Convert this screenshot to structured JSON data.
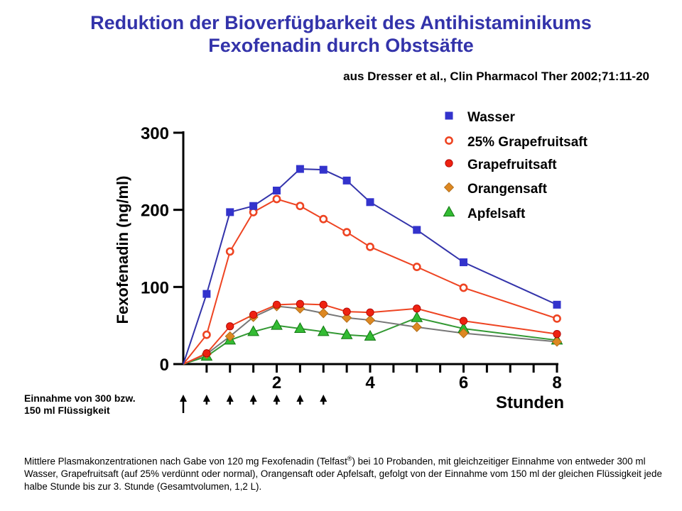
{
  "header": {
    "title_line1": "Reduktion der Bioverfügbarkeit des Antihistaminikums",
    "title_line2": "Fexofenadin durch Obstsäfte",
    "source": "aus Dresser et al., Clin Pharmacol Ther 2002;71:11-20"
  },
  "ingestion_note": {
    "line1": "Einnahme von 300 bzw.",
    "line2": "150 ml Flüssigkeit",
    "arrow_times": [
      0,
      0.5,
      1,
      1.5,
      2,
      2.5,
      3
    ]
  },
  "caption": {
    "part1": "Mittlere Plasmakonzentrationen nach Gabe von 120 mg Fexofenadin (Telfast",
    "superscript": "®",
    "part2": ") bei 10 Probanden, mit gleichzeitiger Einnahme von entweder 300 ml Wasser, Grapefruitsaft (auf 25% verdünnt oder normal), Orangensaft oder Apfelsaft, gefolgt von der Einnahme vom 150 ml der gleichen Flüssigkeit jede halbe Stunde bis zur 3. Stunde (Gesamtvolumen, 1,2 L)."
  },
  "chart_data": {
    "type": "line",
    "title": "Reduktion der Bioverfügbarkeit des Antihistaminikums Fexofenadin durch Obstsäfte",
    "xlabel": "Stunden",
    "ylabel": "Fexofenadin (ng/ml)",
    "xlim": [
      0,
      8
    ],
    "ylim": [
      0,
      300
    ],
    "x_ticks": [
      0,
      0.5,
      1,
      1.5,
      2,
      2.5,
      3,
      3.5,
      4,
      4.5,
      5,
      5.5,
      6,
      6.5,
      7,
      7.5,
      8
    ],
    "x_tick_labels": [
      {
        "x": 2,
        "label": "2"
      },
      {
        "x": 4,
        "label": "4"
      },
      {
        "x": 6,
        "label": "6"
      },
      {
        "x": 8,
        "label": "8"
      }
    ],
    "y_ticks": [
      0,
      100,
      200,
      300
    ],
    "y_tick_labels": [
      "0",
      "100",
      "200",
      "300"
    ],
    "grid": false,
    "legend_position": "top-right",
    "series": [
      {
        "name": "Wasser",
        "marker": "square",
        "color": "#3333cc",
        "line_color": "#3333aa",
        "x": [
          0,
          0.5,
          1,
          1.5,
          2,
          2.5,
          3,
          3.5,
          4,
          5,
          6,
          8
        ],
        "y": [
          0,
          91,
          197,
          205,
          225,
          253,
          252,
          238,
          210,
          174,
          132,
          77
        ]
      },
      {
        "name": "25% Grapefruitsaft",
        "marker": "open-circle",
        "color": "#ee4422",
        "line_color": "#ee4422",
        "x": [
          0,
          0.5,
          1,
          1.5,
          2,
          2.5,
          3,
          3.5,
          4,
          5,
          6,
          8
        ],
        "y": [
          0,
          38,
          146,
          197,
          214,
          205,
          188,
          171,
          152,
          126,
          99,
          59
        ]
      },
      {
        "name": "Grapefruitsaft",
        "marker": "filled-circle",
        "color": "#ee2211",
        "line_color": "#ee4422",
        "x": [
          0,
          0.5,
          1,
          1.5,
          2,
          2.5,
          3,
          3.5,
          4,
          5,
          6,
          8
        ],
        "y": [
          0,
          14,
          49,
          64,
          77,
          78,
          77,
          68,
          67,
          72,
          56,
          39
        ]
      },
      {
        "name": "Orangensaft",
        "marker": "diamond",
        "color": "#dd8822",
        "line_color": "#777777",
        "x": [
          0,
          0.5,
          1,
          1.5,
          2,
          2.5,
          3,
          3.5,
          4,
          5,
          6,
          8
        ],
        "y": [
          0,
          13,
          36,
          61,
          75,
          72,
          66,
          60,
          57,
          48,
          40,
          29
        ]
      },
      {
        "name": "Apfelsaft",
        "marker": "triangle",
        "color": "#33bb33",
        "line_color": "#339933",
        "x": [
          0,
          0.5,
          1,
          1.5,
          2,
          2.5,
          3,
          3.5,
          4,
          5,
          6,
          8
        ],
        "y": [
          0,
          10,
          31,
          42,
          50,
          46,
          42,
          38,
          36,
          60,
          46,
          31
        ]
      }
    ]
  }
}
